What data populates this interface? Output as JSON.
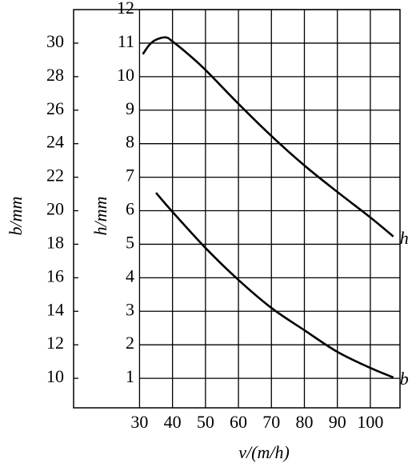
{
  "chart_data": {
    "type": "line",
    "x_label": "v/(m/h)",
    "y_label": "h/mm",
    "y2_label": "b/mm",
    "series": [
      {
        "name": "h",
        "color": "#000000",
        "x": [
          31,
          33,
          35,
          38,
          40,
          45,
          50,
          60,
          70,
          80,
          90,
          100,
          107
        ],
        "values": [
          10.67,
          10.95,
          11.1,
          11.17,
          11.05,
          10.65,
          10.2,
          9.19,
          8.23,
          7.35,
          6.56,
          5.8,
          5.23
        ]
      },
      {
        "name": "b",
        "color": "#000000",
        "axis": "y2",
        "x": [
          35,
          40,
          50,
          60,
          70,
          80,
          90,
          100,
          107
        ],
        "values": [
          21.07,
          19.93,
          17.78,
          15.87,
          14.2,
          12.87,
          11.58,
          10.62,
          10.05
        ]
      }
    ],
    "xlim": [
      10,
      109
    ],
    "xticks": [
      30,
      40,
      50,
      60,
      70,
      80,
      90,
      100
    ],
    "ylim": [
      0.12,
      12
    ],
    "yticks": [
      1,
      2,
      3,
      4,
      5,
      6,
      7,
      8,
      9,
      10,
      11,
      12
    ],
    "y2lim": [
      8.24,
      32
    ],
    "y2ticks": [
      10,
      12,
      14,
      16,
      18,
      20,
      22,
      24,
      26,
      28,
      30
    ],
    "grid": true
  }
}
